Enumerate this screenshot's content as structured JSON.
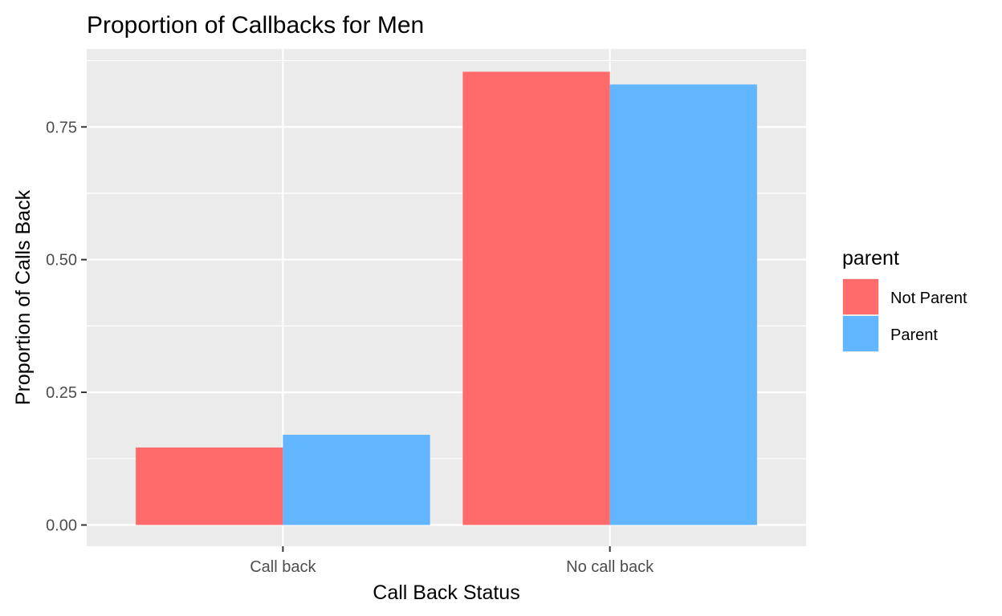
{
  "chart_data": {
    "type": "bar",
    "title": "Proportion of Callbacks for Men",
    "xlabel": "Call Back Status",
    "ylabel": "Proportion of Calls Back",
    "categories": [
      "Call back",
      "No call back"
    ],
    "series": [
      {
        "name": "Not Parent",
        "color": "#ff6b6b",
        "values": [
          0.146,
          0.854
        ]
      },
      {
        "name": "Parent",
        "color": "#61b6ff",
        "values": [
          0.17,
          0.83
        ]
      }
    ],
    "ylim": [
      -0.04,
      0.897
    ],
    "yticks": [
      0,
      0.25,
      0.5,
      0.75
    ],
    "ytick_labels": [
      "0.00",
      "0.25",
      "0.50",
      "0.75"
    ],
    "legend": {
      "title": "parent",
      "position": "right"
    },
    "grid": true,
    "panel_background": "#ebebeb",
    "grid_color": "#ffffff"
  }
}
